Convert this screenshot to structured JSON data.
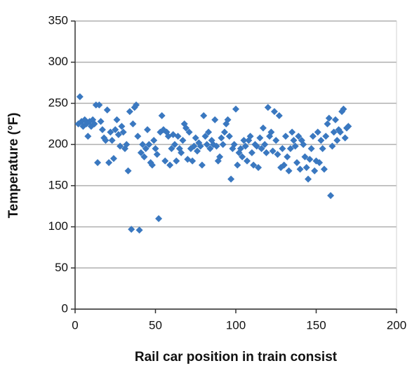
{
  "chart_data": {
    "type": "scatter",
    "x_label": "Rail car position in train consist",
    "y_label": "Temperature (°F)",
    "xlim": [
      0,
      200
    ],
    "xticks": [
      0,
      50,
      100,
      150,
      200
    ],
    "ylim": [
      0,
      350
    ],
    "yticks": [
      0,
      50,
      100,
      150,
      200,
      250,
      300,
      350
    ],
    "grid": true,
    "color": "#3a78c0",
    "x": [
      2,
      3,
      4,
      5,
      6,
      7,
      8,
      9,
      10,
      11,
      12,
      13,
      14,
      15,
      16,
      17,
      18,
      19,
      20,
      21,
      22,
      23,
      24,
      25,
      26,
      27,
      28,
      29,
      30,
      31,
      32,
      33,
      34,
      35,
      36,
      37,
      38,
      39,
      40,
      41,
      42,
      43,
      44,
      45,
      46,
      47,
      48,
      49,
      50,
      51,
      52,
      53,
      54,
      55,
      56,
      57,
      58,
      59,
      60,
      61,
      62,
      63,
      64,
      65,
      66,
      67,
      68,
      69,
      70,
      71,
      72,
      73,
      74,
      75,
      76,
      77,
      78,
      79,
      80,
      81,
      82,
      83,
      84,
      85,
      86,
      87,
      88,
      89,
      90,
      91,
      92,
      93,
      94,
      95,
      96,
      97,
      98,
      99,
      100,
      101,
      102,
      103,
      104,
      105,
      106,
      107,
      108,
      109,
      110,
      111,
      112,
      113,
      114,
      115,
      116,
      117,
      118,
      119,
      120,
      121,
      122,
      123,
      124,
      125,
      126,
      127,
      128,
      129,
      130,
      131,
      132,
      133,
      134,
      135,
      136,
      137,
      138,
      139,
      140,
      141,
      142,
      143,
      144,
      145,
      146,
      147,
      148,
      149,
      150,
      151,
      152,
      153,
      154,
      155,
      156,
      157,
      158,
      159,
      160,
      161,
      162,
      163,
      164,
      165,
      166,
      167,
      168,
      169,
      170
    ],
    "values": [
      225,
      258,
      228,
      222,
      230,
      225,
      210,
      228,
      222,
      230,
      225,
      248,
      178,
      248,
      228,
      218,
      208,
      205,
      242,
      178,
      215,
      205,
      183,
      218,
      230,
      212,
      198,
      222,
      215,
      195,
      200,
      168,
      240,
      97,
      225,
      245,
      248,
      210,
      96,
      190,
      200,
      185,
      195,
      218,
      200,
      178,
      175,
      205,
      195,
      188,
      110,
      215,
      235,
      218,
      180,
      215,
      210,
      175,
      195,
      212,
      200,
      180,
      210,
      195,
      190,
      205,
      225,
      220,
      182,
      215,
      195,
      180,
      198,
      208,
      192,
      202,
      198,
      175,
      235,
      210,
      200,
      215,
      195,
      205,
      200,
      230,
      198,
      180,
      185,
      208,
      200,
      215,
      225,
      230,
      210,
      158,
      195,
      200,
      243,
      175,
      190,
      195,
      185,
      205,
      198,
      180,
      205,
      210,
      190,
      175,
      200,
      198,
      172,
      208,
      195,
      220,
      200,
      190,
      245,
      210,
      215,
      192,
      240,
      205,
      188,
      235,
      172,
      195,
      175,
      210,
      185,
      168,
      195,
      215,
      205,
      198,
      178,
      210,
      170,
      205,
      200,
      185,
      172,
      158,
      182,
      195,
      210,
      168,
      180,
      215,
      178,
      205,
      195,
      170,
      210,
      225,
      232,
      138,
      198,
      215,
      230,
      205,
      218,
      215,
      240,
      243,
      208,
      220,
      222
    ]
  }
}
